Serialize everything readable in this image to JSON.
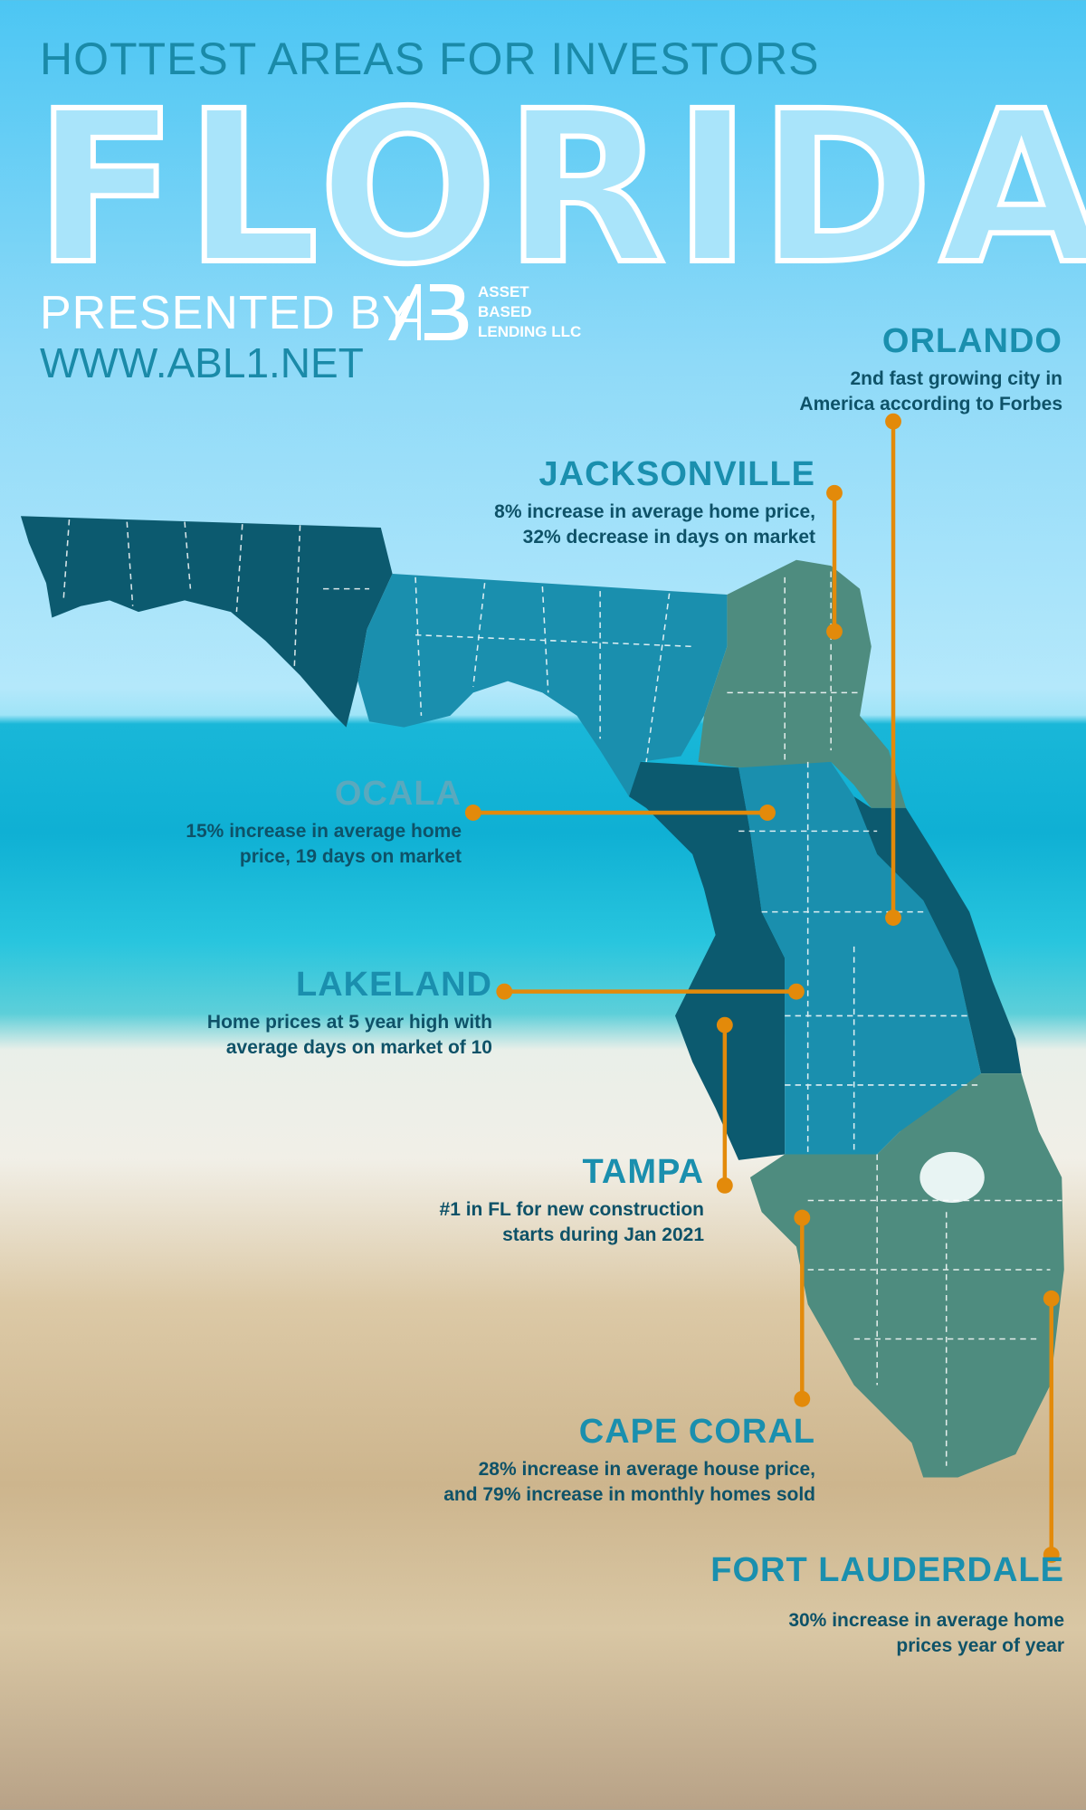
{
  "header": {
    "kicker": "HOTTEST AREAS FOR INVESTORS",
    "title": "FLORIDA",
    "presented_by": "PRESENTED BY",
    "logo": {
      "mark": "ALB",
      "lines": [
        "ASSET",
        "BASED",
        "LENDING LLC"
      ]
    },
    "url": "WWW.ABL1.NET"
  },
  "colors": {
    "title": "#1a8fae",
    "text": "#0e5268",
    "leader": "#e38a0a",
    "map_dark": "#0c5a6f",
    "map_mid": "#1a8fae",
    "map_green": "#4e8c7f"
  },
  "cities": [
    {
      "name": "ORLANDO",
      "desc": [
        "2nd fast growing city in",
        "America according to Forbes"
      ]
    },
    {
      "name": "JACKSONVILLE",
      "desc": [
        "8% increase in average home price,",
        "32% decrease in days on market"
      ]
    },
    {
      "name": "OCALA",
      "desc": [
        "15% increase in average home",
        "price, 19 days on market"
      ]
    },
    {
      "name": "LAKELAND",
      "desc": [
        "Home prices at 5 year high with",
        "average days on market of 10"
      ]
    },
    {
      "name": "TAMPA",
      "desc": [
        "#1 in FL for new construction",
        "starts during Jan 2021"
      ]
    },
    {
      "name": "CAPE CORAL",
      "desc": [
        "28% increase in average house price,",
        "and 79% increase in monthly homes sold"
      ]
    },
    {
      "name": "FORT LAUDERDALE",
      "desc": [
        "30% increase in average home",
        "prices year of year"
      ]
    }
  ]
}
